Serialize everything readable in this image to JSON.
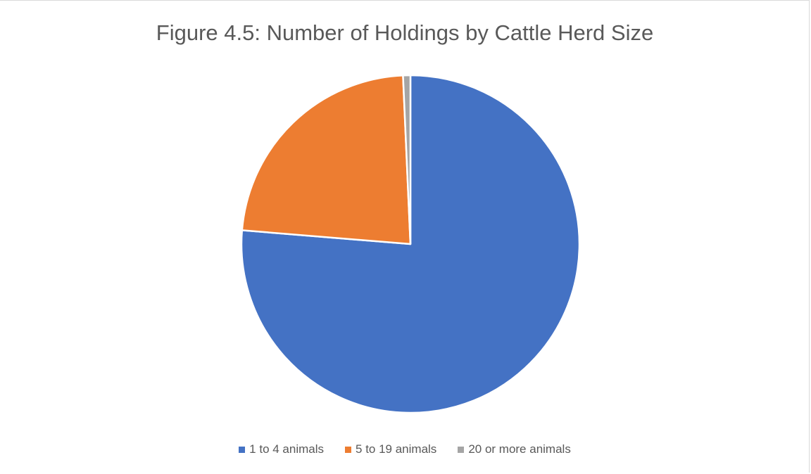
{
  "chart_data": {
    "type": "pie",
    "title": "Figure 4.5: Number of Holdings by Cattle Herd Size",
    "categories": [
      "1 to 4 animals",
      "5 to 19 animals",
      "20 or more animals"
    ],
    "values": [
      76.3,
      23.0,
      0.7
    ],
    "colors": [
      "#4472C4",
      "#ED7D31",
      "#A5A5A5"
    ],
    "legend_position": "bottom",
    "start_angle_deg": 0,
    "direction": "clockwise"
  }
}
